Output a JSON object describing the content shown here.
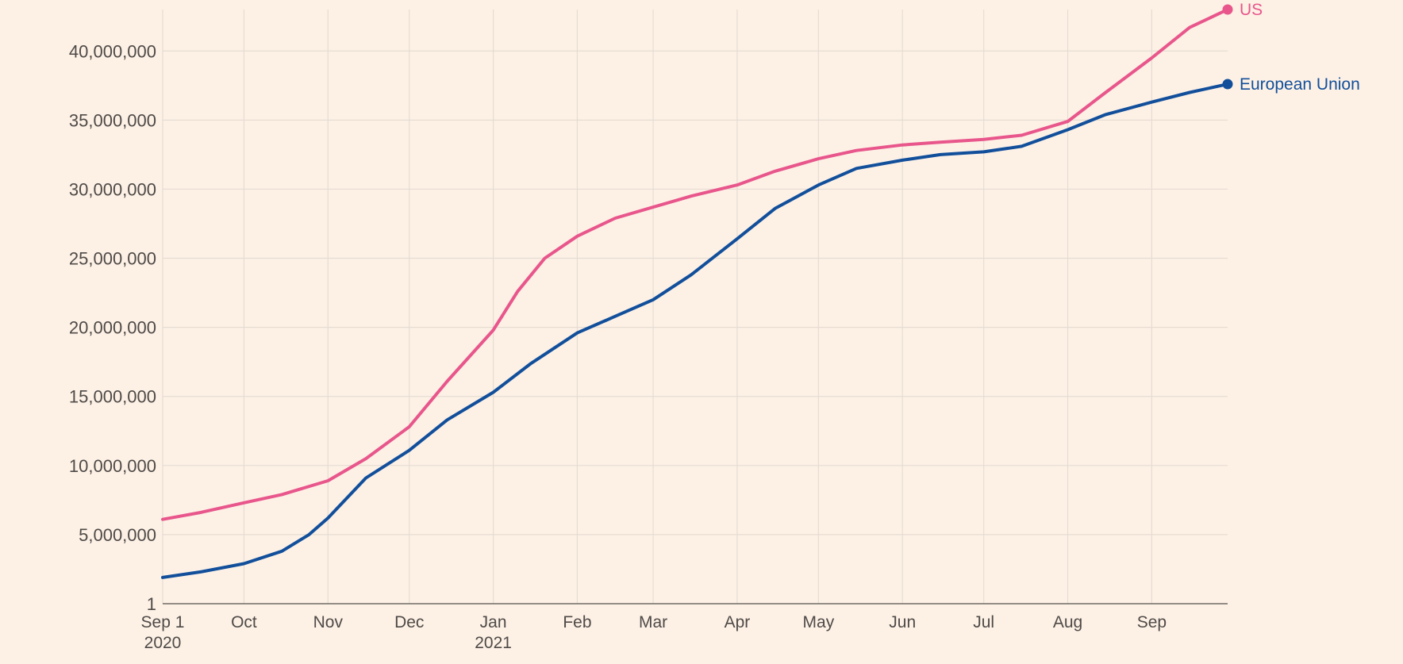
{
  "chart_data": {
    "type": "line",
    "title": "",
    "xlabel": "",
    "ylabel": "",
    "x_range": [
      "2020-09-01",
      "2021-09-29"
    ],
    "ylim": [
      1,
      43000000
    ],
    "grid": true,
    "legend": "inline-right",
    "y_ticks": [
      {
        "value": 1,
        "label": "1"
      },
      {
        "value": 5000000,
        "label": "5,000,000"
      },
      {
        "value": 10000000,
        "label": "10,000,000"
      },
      {
        "value": 15000000,
        "label": "15,000,000"
      },
      {
        "value": 20000000,
        "label": "20,000,000"
      },
      {
        "value": 25000000,
        "label": "25,000,000"
      },
      {
        "value": 30000000,
        "label": "30,000,000"
      },
      {
        "value": 35000000,
        "label": "35,000,000"
      },
      {
        "value": 40000000,
        "label": "40,000,000"
      }
    ],
    "x_ticks": [
      {
        "date": "2020-09-01",
        "label": "Sep 1",
        "sublabel": "2020"
      },
      {
        "date": "2020-10-01",
        "label": "Oct",
        "sublabel": ""
      },
      {
        "date": "2020-11-01",
        "label": "Nov",
        "sublabel": ""
      },
      {
        "date": "2020-12-01",
        "label": "Dec",
        "sublabel": ""
      },
      {
        "date": "2021-01-01",
        "label": "Jan",
        "sublabel": "2021"
      },
      {
        "date": "2021-02-01",
        "label": "Feb",
        "sublabel": ""
      },
      {
        "date": "2021-03-01",
        "label": "Mar",
        "sublabel": ""
      },
      {
        "date": "2021-04-01",
        "label": "Apr",
        "sublabel": ""
      },
      {
        "date": "2021-05-01",
        "label": "May",
        "sublabel": ""
      },
      {
        "date": "2021-06-01",
        "label": "Jun",
        "sublabel": ""
      },
      {
        "date": "2021-07-01",
        "label": "Jul",
        "sublabel": ""
      },
      {
        "date": "2021-08-01",
        "label": "Aug",
        "sublabel": ""
      },
      {
        "date": "2021-09-01",
        "label": "Sep",
        "sublabel": ""
      }
    ],
    "series": [
      {
        "name": "US",
        "color": "#e8568b",
        "points": [
          [
            "2020-09-01",
            6100000
          ],
          [
            "2020-09-15",
            6600000
          ],
          [
            "2020-10-01",
            7300000
          ],
          [
            "2020-10-15",
            7900000
          ],
          [
            "2020-11-01",
            8900000
          ],
          [
            "2020-11-15",
            10500000
          ],
          [
            "2020-12-01",
            12800000
          ],
          [
            "2020-12-15",
            16100000
          ],
          [
            "2021-01-01",
            19800000
          ],
          [
            "2021-01-10",
            22600000
          ],
          [
            "2021-01-20",
            25000000
          ],
          [
            "2021-02-01",
            26600000
          ],
          [
            "2021-02-15",
            27900000
          ],
          [
            "2021-03-01",
            28700000
          ],
          [
            "2021-03-15",
            29500000
          ],
          [
            "2021-04-01",
            30300000
          ],
          [
            "2021-04-15",
            31300000
          ],
          [
            "2021-05-01",
            32200000
          ],
          [
            "2021-05-15",
            32800000
          ],
          [
            "2021-06-01",
            33200000
          ],
          [
            "2021-06-15",
            33400000
          ],
          [
            "2021-07-01",
            33600000
          ],
          [
            "2021-07-15",
            33900000
          ],
          [
            "2021-08-01",
            34900000
          ],
          [
            "2021-08-15",
            37000000
          ],
          [
            "2021-09-01",
            39500000
          ],
          [
            "2021-09-15",
            41700000
          ],
          [
            "2021-09-29",
            43000000
          ]
        ]
      },
      {
        "name": "European Union",
        "color": "#124f9b",
        "points": [
          [
            "2020-09-01",
            1900000
          ],
          [
            "2020-09-15",
            2300000
          ],
          [
            "2020-10-01",
            2900000
          ],
          [
            "2020-10-15",
            3800000
          ],
          [
            "2020-10-25",
            5000000
          ],
          [
            "2020-11-01",
            6200000
          ],
          [
            "2020-11-15",
            9100000
          ],
          [
            "2020-12-01",
            11100000
          ],
          [
            "2020-12-15",
            13300000
          ],
          [
            "2021-01-01",
            15300000
          ],
          [
            "2021-01-15",
            17400000
          ],
          [
            "2021-02-01",
            19600000
          ],
          [
            "2021-02-15",
            20800000
          ],
          [
            "2021-03-01",
            22000000
          ],
          [
            "2021-03-15",
            23800000
          ],
          [
            "2021-04-01",
            26400000
          ],
          [
            "2021-04-15",
            28600000
          ],
          [
            "2021-05-01",
            30300000
          ],
          [
            "2021-05-15",
            31500000
          ],
          [
            "2021-06-01",
            32100000
          ],
          [
            "2021-06-15",
            32500000
          ],
          [
            "2021-07-01",
            32700000
          ],
          [
            "2021-07-15",
            33100000
          ],
          [
            "2021-08-01",
            34300000
          ],
          [
            "2021-08-15",
            35400000
          ],
          [
            "2021-09-01",
            36300000
          ],
          [
            "2021-09-15",
            37000000
          ],
          [
            "2021-09-29",
            37600000
          ]
        ]
      }
    ]
  }
}
